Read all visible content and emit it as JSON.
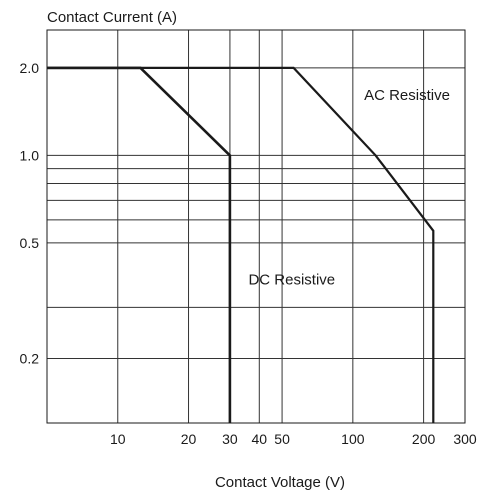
{
  "chart_data": {
    "type": "line",
    "title": "",
    "ylabel": "Contact Current (A)",
    "xlabel": "Contact Voltage (V)",
    "x_scale": "log",
    "y_scale": "log",
    "xlim": [
      5,
      300
    ],
    "ylim": [
      0.12,
      2.7
    ],
    "x_ticks": [
      10,
      20,
      30,
      40,
      50,
      100,
      200,
      300
    ],
    "x_tick_labels": [
      "10",
      "20",
      "30",
      "40",
      "50",
      "100",
      "200",
      "300"
    ],
    "y_ticks": [
      0.2,
      0.5,
      1.0,
      2.0
    ],
    "y_tick_labels": [
      "0.2",
      "0.5",
      "1.0",
      "2.0"
    ],
    "grid": true,
    "x_grid": [
      10,
      20,
      30,
      40,
      50,
      100,
      200
    ],
    "y_grid": [
      0.2,
      0.3,
      0.5,
      0.6,
      0.7,
      0.8,
      0.9,
      1.0,
      2.0
    ],
    "series": [
      {
        "name": "AC Resistive",
        "color": "#1a1a1a",
        "points": [
          [
            5,
            2.0
          ],
          [
            56,
            2.0
          ],
          [
            125,
            1.0
          ],
          [
            220,
            0.55
          ],
          [
            220,
            0.12
          ]
        ]
      },
      {
        "name": "DC Resistive",
        "color": "#1a1a1a",
        "points": [
          [
            5,
            2.0
          ],
          [
            12.5,
            2.0
          ],
          [
            30,
            1.0
          ],
          [
            30,
            0.12
          ]
        ]
      }
    ],
    "annotations": [
      {
        "text": "AC Resistive",
        "x": 170,
        "y": 1.55
      },
      {
        "text": "DC Resistive",
        "x": 55,
        "y": 0.36
      }
    ]
  }
}
